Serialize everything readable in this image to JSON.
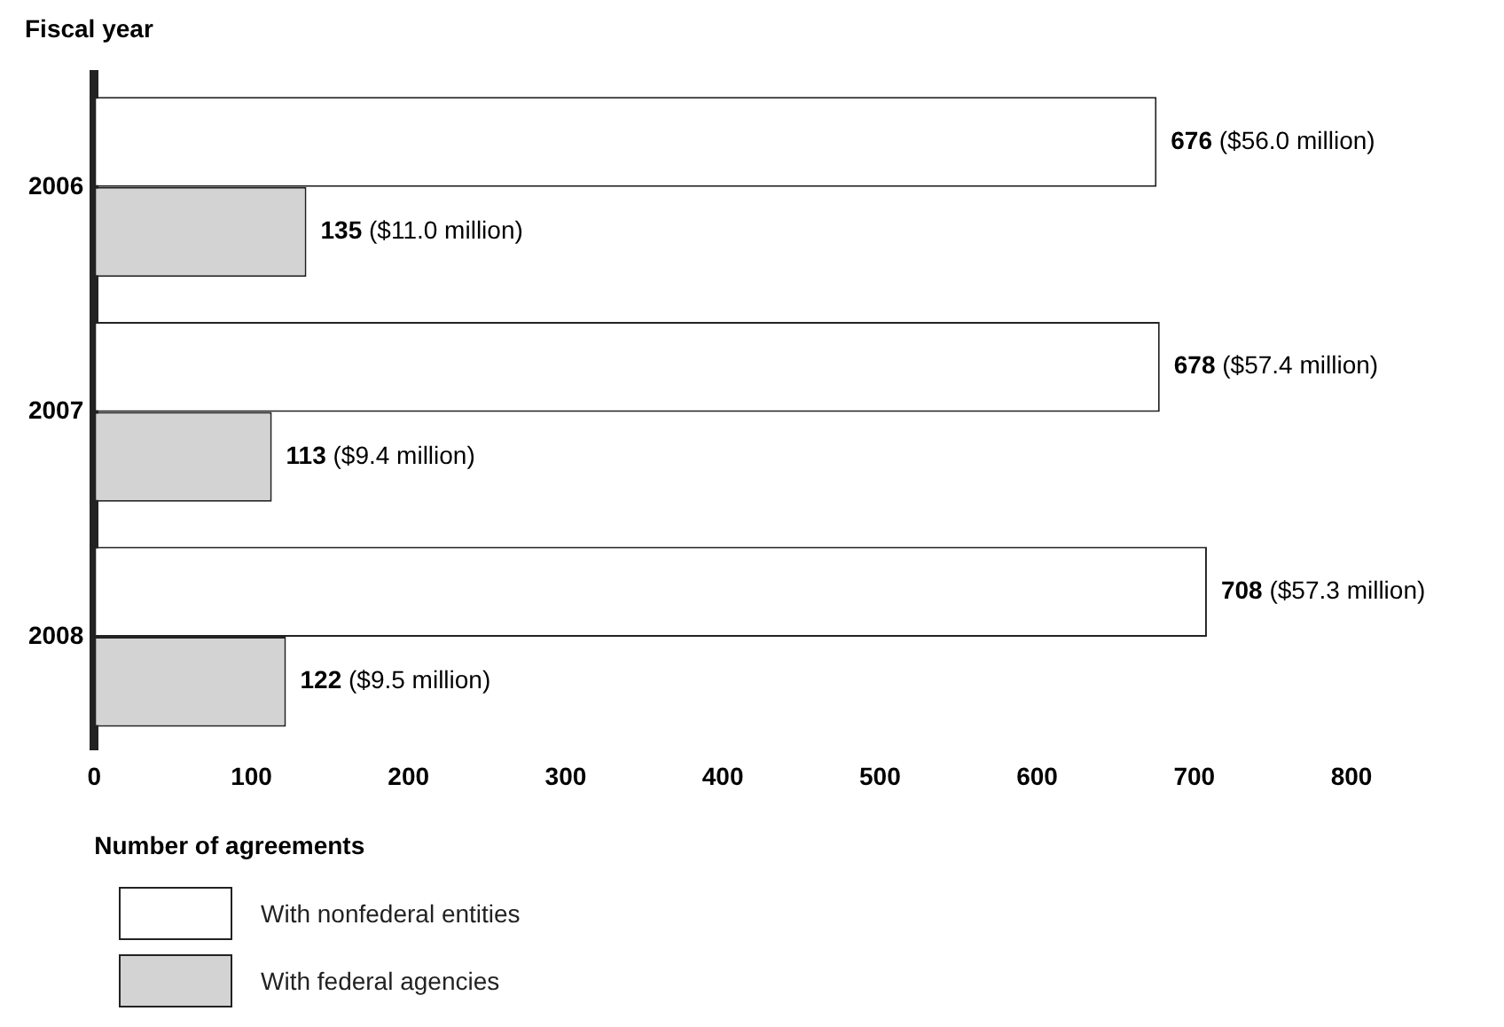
{
  "chart_data": {
    "type": "bar",
    "orientation": "horizontal",
    "ylabel": "Fiscal year",
    "xlabel": "Number of agreements",
    "categories": [
      "2006",
      "2007",
      "2008"
    ],
    "series": [
      {
        "name": "With nonfederal entities",
        "color": "#ffffff",
        "values": [
          676,
          678,
          708
        ],
        "value_labels": [
          "676 ($56.0 million)",
          "678 ($57.4 million)",
          "708 ($57.3 million)"
        ]
      },
      {
        "name": "With federal agencies",
        "color": "#d3d3d3",
        "values": [
          135,
          113,
          122
        ],
        "value_labels": [
          "135 ($11.0 million)",
          "113 ($9.4 million)",
          "122 ($9.5 million)"
        ]
      }
    ],
    "xlim": [
      0,
      800
    ],
    "xticks": [
      0,
      100,
      200,
      300,
      400,
      500,
      600,
      700,
      800
    ],
    "grid": false,
    "legend": "bottom"
  }
}
